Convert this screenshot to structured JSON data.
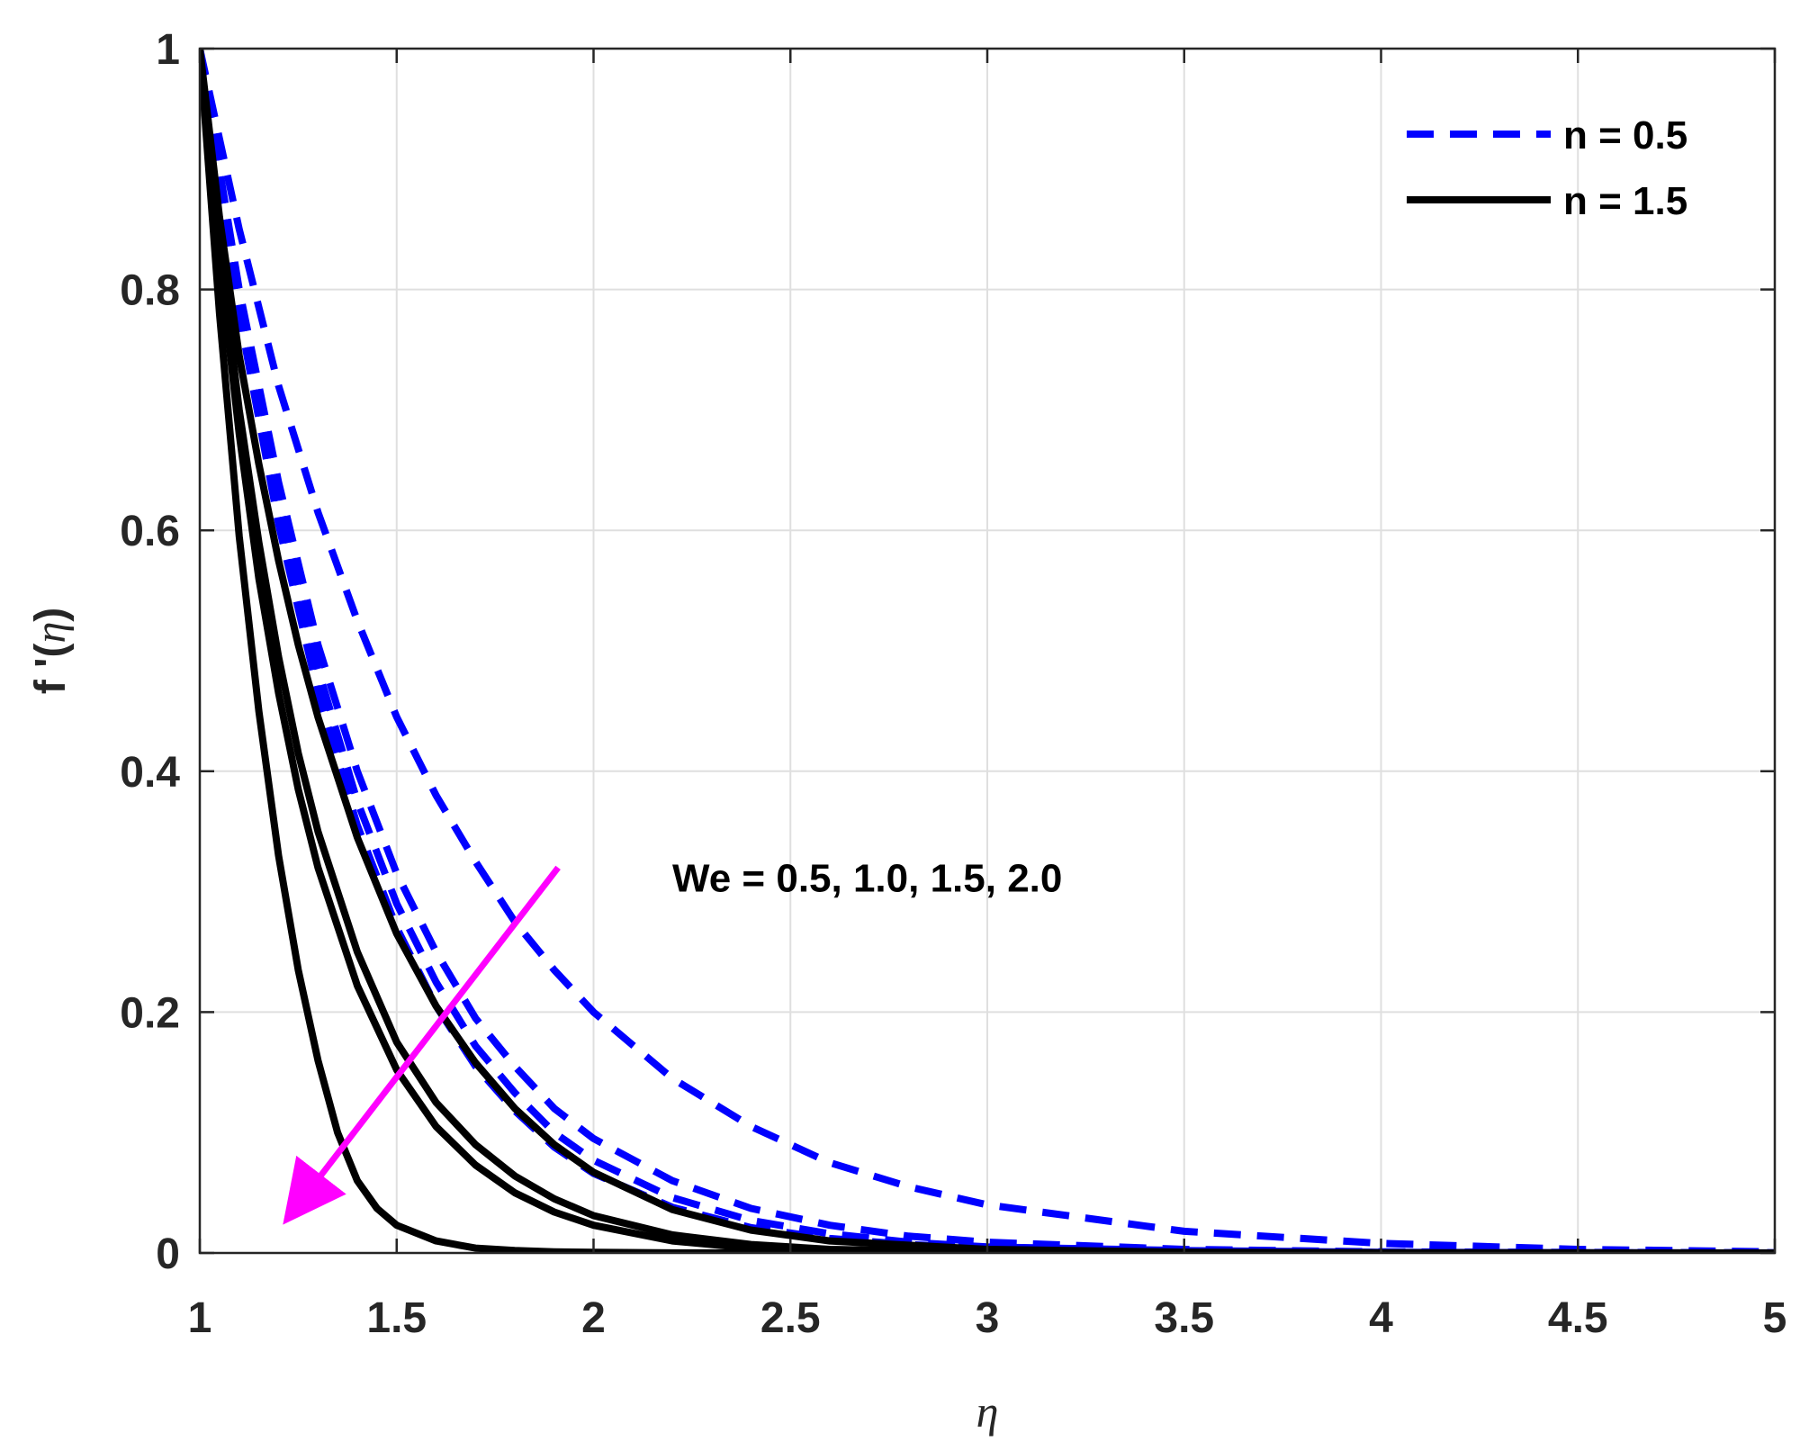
{
  "chart_data": {
    "type": "line",
    "title": "",
    "xlabel": "η",
    "ylabel_main": "f '(",
    "ylabel_var": "η",
    "ylabel_close": ")",
    "xlim": [
      1,
      5
    ],
    "ylim": [
      0,
      1
    ],
    "xticks": [
      1,
      1.5,
      2,
      2.5,
      3,
      3.5,
      4,
      4.5,
      5
    ],
    "xtick_labels": [
      "1",
      "1.5",
      "2",
      "2.5",
      "3",
      "3.5",
      "4",
      "4.5",
      "5"
    ],
    "yticks": [
      0,
      0.2,
      0.4,
      0.6,
      0.8,
      1
    ],
    "ytick_labels": [
      "0",
      "0.2",
      "0.4",
      "0.6",
      "0.8",
      "1"
    ],
    "grid": true,
    "legend_position": "top-right",
    "legend": [
      {
        "label": "n = 0.5",
        "style": "dashed",
        "color": "#0000ff"
      },
      {
        "label": "n = 1.5",
        "style": "solid",
        "color": "#000000"
      }
    ],
    "annotation": {
      "text": "We = 0.5, 1.0, 1.5, 2.0",
      "arrow_from": [
        1.91,
        0.32
      ],
      "arrow_to": [
        1.25,
        0.04
      ],
      "arrow_color": "#ff00ff",
      "text_at": [
        2.2,
        0.3
      ]
    },
    "series": [
      {
        "name": "n = 0.5, We = 0.5",
        "group": "n = 0.5",
        "We": 0.5,
        "style": "dashed",
        "color": "#0000ff",
        "x": [
          1,
          1.1,
          1.2,
          1.3,
          1.4,
          1.5,
          1.6,
          1.7,
          1.8,
          1.9,
          2.0,
          2.2,
          2.4,
          2.6,
          2.8,
          3.0,
          3.5,
          4.0,
          4.5,
          5.0
        ],
        "y": [
          1,
          0.85,
          0.72,
          0.615,
          0.525,
          0.445,
          0.38,
          0.325,
          0.275,
          0.235,
          0.2,
          0.145,
          0.105,
          0.075,
          0.055,
          0.04,
          0.018,
          0.008,
          0.003,
          0.001
        ]
      },
      {
        "name": "n = 0.5, We = 1.0",
        "group": "n = 0.5",
        "We": 1.0,
        "style": "dashed",
        "color": "#0000ff",
        "x": [
          1,
          1.1,
          1.2,
          1.3,
          1.4,
          1.5,
          1.6,
          1.7,
          1.8,
          1.9,
          2.0,
          2.2,
          2.4,
          2.6,
          2.8,
          3.0,
          3.5,
          4.0,
          4.5,
          5.0
        ],
        "y": [
          1,
          0.8,
          0.64,
          0.505,
          0.4,
          0.315,
          0.25,
          0.195,
          0.155,
          0.12,
          0.095,
          0.06,
          0.037,
          0.023,
          0.014,
          0.009,
          0.003,
          0.001,
          0.0005,
          0.0002
        ]
      },
      {
        "name": "n = 0.5, We = 1.5",
        "group": "n = 0.5",
        "We": 1.5,
        "style": "dashed",
        "color": "#0000ff",
        "x": [
          1,
          1.1,
          1.2,
          1.3,
          1.4,
          1.5,
          1.6,
          1.7,
          1.8,
          1.9,
          2.0,
          2.2,
          2.4,
          2.6,
          2.8,
          3.0,
          3.5,
          4.0,
          4.5,
          5.0
        ],
        "y": [
          1,
          0.79,
          0.625,
          0.485,
          0.375,
          0.29,
          0.225,
          0.172,
          0.133,
          0.1,
          0.077,
          0.046,
          0.027,
          0.016,
          0.009,
          0.005,
          0.002,
          0.0006,
          0.0002,
          0.0001
        ]
      },
      {
        "name": "n = 0.5, We = 2.0",
        "group": "n = 0.5",
        "We": 2.0,
        "style": "dashed",
        "color": "#0000ff",
        "x": [
          1,
          1.1,
          1.2,
          1.3,
          1.4,
          1.5,
          1.6,
          1.7,
          1.8,
          1.9,
          2.0,
          2.2,
          2.4,
          2.6,
          2.8,
          3.0,
          3.5,
          4.0,
          4.5,
          5.0
        ],
        "y": [
          1,
          0.78,
          0.605,
          0.465,
          0.355,
          0.27,
          0.205,
          0.155,
          0.118,
          0.088,
          0.066,
          0.038,
          0.021,
          0.012,
          0.007,
          0.004,
          0.001,
          0.0004,
          0.0001,
          0.0
        ]
      },
      {
        "name": "n = 1.5, We = 0.5",
        "group": "n = 1.5",
        "We": 0.5,
        "style": "solid",
        "color": "#000000",
        "x": [
          1,
          1.05,
          1.1,
          1.15,
          1.2,
          1.25,
          1.3,
          1.4,
          1.5,
          1.6,
          1.7,
          1.8,
          1.9,
          2.0,
          2.2,
          2.4,
          2.6,
          3.0,
          3.5,
          4.0,
          5.0
        ],
        "y": [
          1,
          0.86,
          0.745,
          0.655,
          0.575,
          0.505,
          0.445,
          0.345,
          0.265,
          0.205,
          0.158,
          0.12,
          0.09,
          0.067,
          0.036,
          0.019,
          0.01,
          0.003,
          0.0007,
          0.0002,
          0.0
        ]
      },
      {
        "name": "n = 1.5, We = 1.0",
        "group": "n = 1.5",
        "We": 1.0,
        "style": "solid",
        "color": "#000000",
        "x": [
          1,
          1.05,
          1.1,
          1.15,
          1.2,
          1.25,
          1.3,
          1.4,
          1.5,
          1.6,
          1.7,
          1.8,
          1.9,
          2.0,
          2.2,
          2.4,
          2.6,
          3.0,
          3.5,
          4.0,
          5.0
        ],
        "y": [
          1,
          0.835,
          0.7,
          0.59,
          0.495,
          0.415,
          0.35,
          0.25,
          0.175,
          0.125,
          0.09,
          0.064,
          0.045,
          0.031,
          0.015,
          0.007,
          0.003,
          0.0007,
          0.0001,
          0.0,
          0.0
        ]
      },
      {
        "name": "n = 1.5, We = 1.5",
        "group": "n = 1.5",
        "We": 1.5,
        "style": "solid",
        "color": "#000000",
        "x": [
          1,
          1.05,
          1.1,
          1.15,
          1.2,
          1.25,
          1.3,
          1.4,
          1.5,
          1.6,
          1.7,
          1.8,
          1.9,
          2.0,
          2.2,
          2.4,
          2.6,
          3.0,
          3.5,
          4.0,
          5.0
        ],
        "y": [
          1,
          0.825,
          0.68,
          0.56,
          0.465,
          0.385,
          0.32,
          0.222,
          0.152,
          0.105,
          0.073,
          0.05,
          0.034,
          0.023,
          0.01,
          0.004,
          0.002,
          0.0004,
          0.0001,
          0.0,
          0.0
        ]
      },
      {
        "name": "n = 1.5, We = 2.0",
        "group": "n = 1.5",
        "We": 2.0,
        "style": "solid",
        "color": "#000000",
        "x": [
          1,
          1.05,
          1.1,
          1.15,
          1.2,
          1.25,
          1.3,
          1.35,
          1.4,
          1.45,
          1.5,
          1.6,
          1.7,
          1.8,
          1.9,
          2.0,
          2.2,
          2.5,
          3.0,
          4.0,
          5.0
        ],
        "y": [
          1,
          0.78,
          0.595,
          0.45,
          0.33,
          0.235,
          0.16,
          0.1,
          0.06,
          0.037,
          0.023,
          0.01,
          0.004,
          0.002,
          0.001,
          0.0005,
          0.0001,
          0.0,
          0.0,
          0.0,
          0.0
        ]
      }
    ]
  }
}
